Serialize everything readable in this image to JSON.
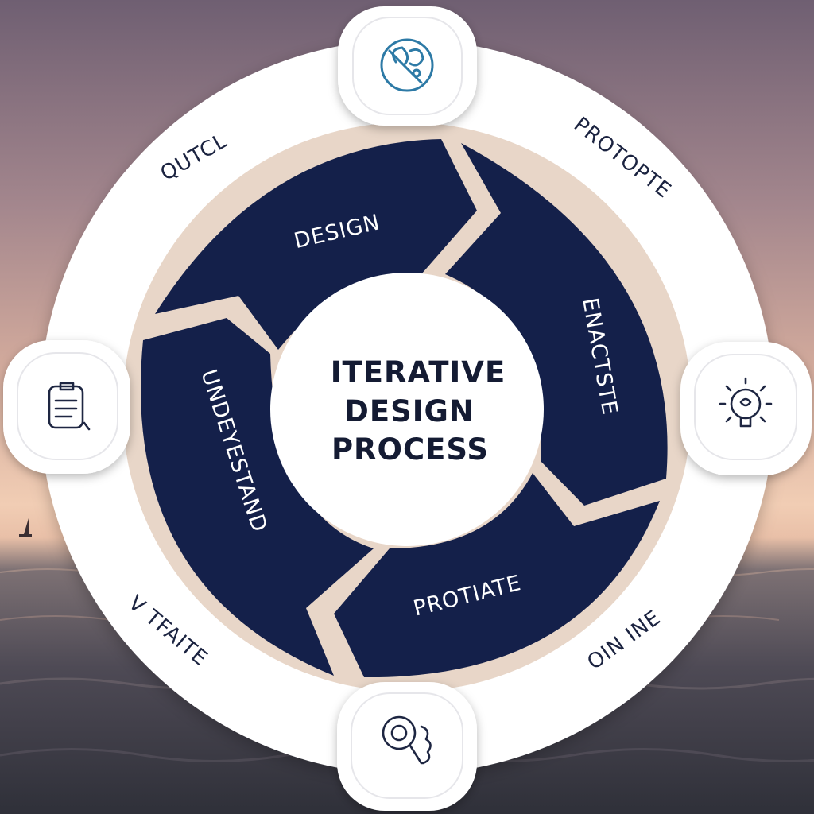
{
  "center": {
    "line1": "ITERATIVE",
    "line2": "DESIGN",
    "line3": "PROCESS"
  },
  "segments": {
    "design": "DESIGN",
    "enact": "ENACTSTE",
    "protiate": "PROTIATE",
    "understand": "UNDEYESTAND"
  },
  "ring_labels": {
    "top_left": "QUTCL",
    "top_right": "PROTOPTE",
    "bottom_left": "V TFAITE",
    "bottom_right": "OIN INE"
  },
  "icons": [
    "gear-tools-icon",
    "lightbulb-icon",
    "magnifier-icon",
    "clipboard-icon"
  ],
  "colors": {
    "segment": "#14204a",
    "ring": "#ffffff",
    "icon_blue": "#2d7aa6",
    "text_dark": "#1b2340"
  }
}
